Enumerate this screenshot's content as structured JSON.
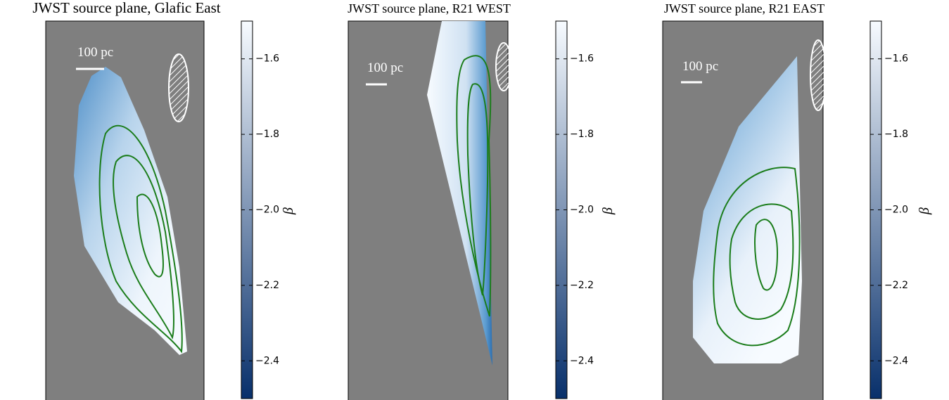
{
  "chart_data": [
    {
      "type": "image",
      "title": "JWST source plane, Glafic East",
      "annotation": "100 pc",
      "colorbar": {
        "label": "β",
        "lim": [
          -2.5,
          -1.5
        ],
        "colormap": [
          "#08306b",
          "#f7fbff"
        ],
        "ticks": [
          {
            "value": -1.6,
            "label": "−1.6"
          },
          {
            "value": -1.8,
            "label": "−1.8"
          },
          {
            "value": -2.0,
            "label": "−2.0"
          },
          {
            "value": -2.2,
            "label": "−2.2"
          },
          {
            "value": -2.4,
            "label": "−2.4"
          }
        ]
      }
    },
    {
      "type": "image",
      "title": "JWST source plane, R21 WEST",
      "annotation": "100 pc",
      "colorbar": {
        "label": "β",
        "lim": [
          -2.5,
          -1.5
        ],
        "colormap": [
          "#08306b",
          "#f7fbff"
        ],
        "ticks": [
          {
            "value": -1.6,
            "label": "−1.6"
          },
          {
            "value": -1.8,
            "label": "−1.8"
          },
          {
            "value": -2.0,
            "label": "−2.0"
          },
          {
            "value": -2.2,
            "label": "−2.2"
          },
          {
            "value": -2.4,
            "label": "−2.4"
          }
        ]
      }
    },
    {
      "type": "image",
      "title": "JWST source plane, R21 EAST",
      "annotation": "100 pc",
      "colorbar": {
        "label": "β",
        "lim": [
          -2.5,
          -1.5
        ],
        "colormap": [
          "#08306b",
          "#f7fbff"
        ],
        "ticks": [
          {
            "value": -1.6,
            "label": "−1.6"
          },
          {
            "value": -1.8,
            "label": "−1.8"
          },
          {
            "value": -2.0,
            "label": "−2.0"
          },
          {
            "value": -2.2,
            "label": "−2.2"
          },
          {
            "value": -2.4,
            "label": "−2.4"
          }
        ]
      }
    }
  ]
}
